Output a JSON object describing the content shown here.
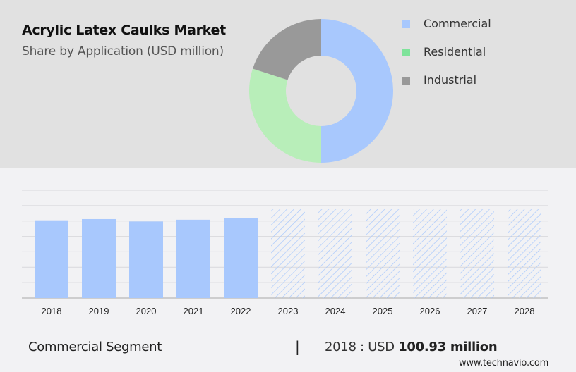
{
  "header": {
    "title": "Acrylic Latex Caulks Market",
    "subtitle": "Share by Application (USD million)"
  },
  "legend": [
    {
      "label": "Commercial",
      "color": "#a8c8fd"
    },
    {
      "label": "Residential",
      "color": "#7ee39a"
    },
    {
      "label": "Industrial",
      "color": "#999999"
    }
  ],
  "footer": {
    "segment": "Commercial Segment",
    "separator": "|",
    "year_prefix": "2018 : USD ",
    "value": "100.93 million",
    "site": "www.technavio.com"
  },
  "chart_data": [
    {
      "type": "pie",
      "subtype": "donut",
      "title": "Acrylic Latex Caulks Market",
      "subtitle": "Share by Application (USD million)",
      "labels": [
        "Commercial",
        "Residential",
        "Industrial"
      ],
      "values": [
        50,
        30,
        20
      ],
      "colors": [
        "#a8c8fd",
        "#b8eeb9",
        "#999999"
      ],
      "legend_position": "right"
    },
    {
      "type": "bar",
      "series_name": "Commercial Segment",
      "categories": [
        "2018",
        "2019",
        "2020",
        "2021",
        "2022",
        "2023",
        "2024",
        "2025",
        "2026",
        "2027",
        "2028"
      ],
      "values": [
        100.93,
        102.5,
        99.4,
        101.7,
        104.0,
        116,
        116,
        116,
        116,
        116,
        116
      ],
      "forecast_from": "2023",
      "forecast_style": "hatched",
      "ylim": [
        0,
        140
      ],
      "grid": true,
      "axis_labels_visible": false,
      "color": "#a8c8fd"
    }
  ]
}
